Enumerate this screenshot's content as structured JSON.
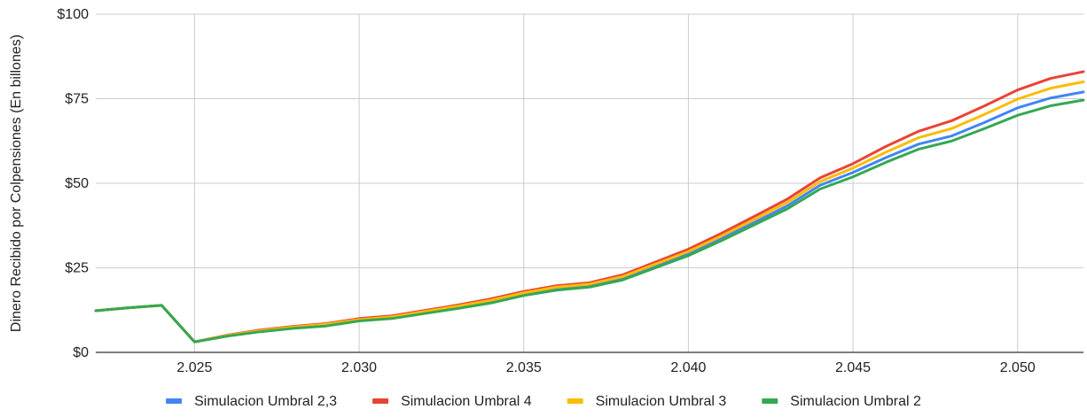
{
  "chart_data": {
    "type": "line",
    "title": "",
    "xlabel": "",
    "ylabel": "Dinero Recibido por Colpensiones  (En billones)",
    "xlim": [
      2022,
      2052
    ],
    "ylim": [
      0,
      100
    ],
    "x_ticks": [
      2025,
      2030,
      2035,
      2040,
      2045,
      2050
    ],
    "x_tick_labels": [
      "2.025",
      "2.030",
      "2.035",
      "2.040",
      "2.045",
      "2.050"
    ],
    "y_ticks": [
      0,
      25,
      50,
      75,
      100
    ],
    "y_tick_labels": [
      "$0",
      "$25",
      "$50",
      "$75",
      "$100"
    ],
    "grid": true,
    "legend_position": "bottom",
    "x": [
      2022,
      2023,
      2024,
      2025,
      2026,
      2027,
      2028,
      2029,
      2030,
      2031,
      2032,
      2033,
      2034,
      2035,
      2036,
      2037,
      2038,
      2039,
      2040,
      2041,
      2042,
      2043,
      2044,
      2045,
      2046,
      2047,
      2048,
      2049,
      2050,
      2051,
      2052
    ],
    "series": [
      {
        "name": "Simulacion Umbral 2,3",
        "color": "#4285f4",
        "values": [
          12.3,
          13.2,
          13.9,
          3.1,
          4.9,
          6.3,
          7.3,
          8.0,
          9.5,
          10.3,
          11.8,
          13.4,
          15.1,
          17.2,
          18.9,
          19.8,
          22.0,
          25.6,
          29.2,
          33.6,
          38.4,
          43.3,
          49.4,
          53.2,
          57.6,
          61.6,
          64.0,
          68.0,
          72.3,
          75.2,
          77.0
        ]
      },
      {
        "name": "Simulacion Umbral 4",
        "color": "#ea4335",
        "values": [
          12.3,
          13.2,
          13.9,
          3.1,
          5.1,
          6.6,
          7.7,
          8.5,
          10.0,
          10.8,
          12.4,
          14.0,
          15.8,
          18.0,
          19.7,
          20.6,
          22.9,
          26.7,
          30.5,
          35.2,
          40.2,
          45.3,
          51.6,
          55.8,
          60.9,
          65.4,
          68.5,
          72.9,
          77.6,
          81.0,
          83.0
        ]
      },
      {
        "name": "Simulacion Umbral 3",
        "color": "#fbbc04",
        "values": [
          12.3,
          13.2,
          13.9,
          3.1,
          5.0,
          6.4,
          7.5,
          8.3,
          9.7,
          10.5,
          12.1,
          13.7,
          15.4,
          17.6,
          19.3,
          20.2,
          22.4,
          26.1,
          29.8,
          34.4,
          39.3,
          44.3,
          50.5,
          54.5,
          59.2,
          63.5,
          66.2,
          70.4,
          74.9,
          78.1,
          80.0
        ]
      },
      {
        "name": "Simulacion Umbral 2",
        "color": "#34a853",
        "values": [
          12.3,
          13.2,
          13.9,
          3.1,
          4.8,
          6.1,
          7.1,
          7.8,
          9.3,
          10.0,
          11.5,
          13.0,
          14.6,
          16.8,
          18.4,
          19.3,
          21.4,
          25.0,
          28.6,
          33.0,
          37.7,
          42.4,
          48.3,
          51.9,
          56.2,
          60.1,
          62.5,
          66.2,
          70.1,
          72.9,
          74.6
        ]
      }
    ]
  }
}
